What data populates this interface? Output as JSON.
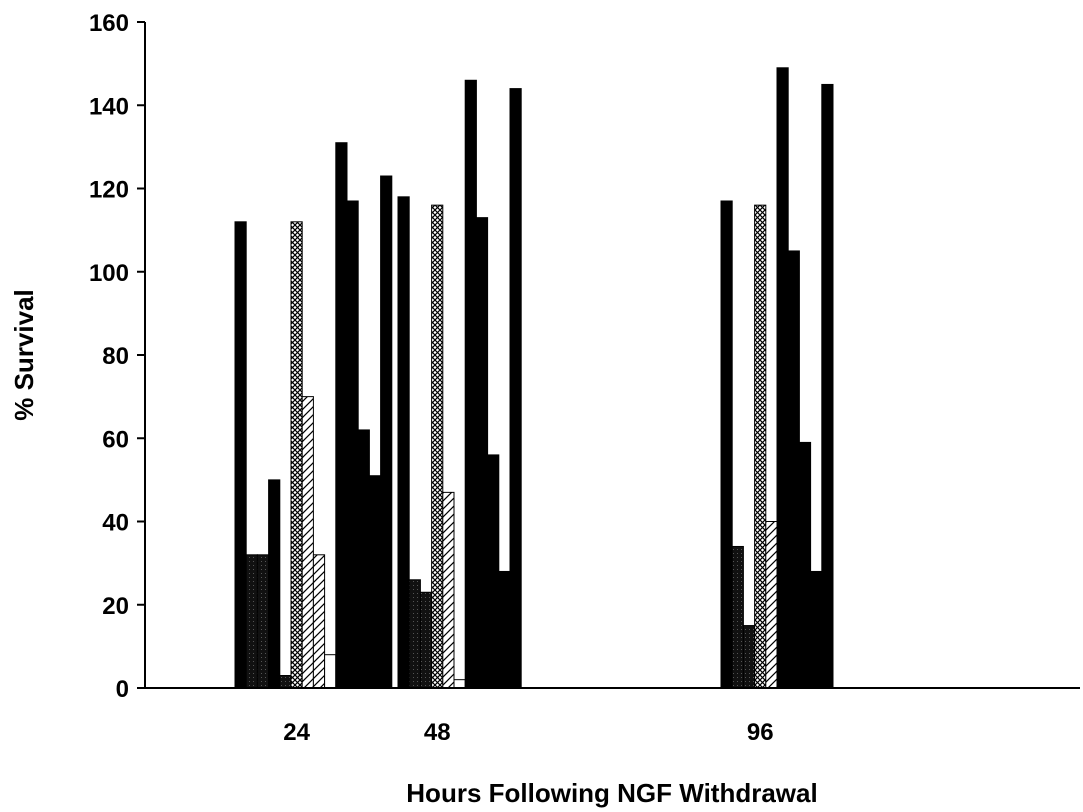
{
  "chart_data": {
    "type": "bar",
    "title": "",
    "xlabel": "Hours Following NGF Withdrawal",
    "ylabel": "% Survival",
    "ylim": [
      0,
      160
    ],
    "yticks": [
      0,
      20,
      40,
      60,
      80,
      100,
      120,
      140,
      160
    ],
    "categories": [
      "24",
      "48",
      "96"
    ],
    "legend": "none",
    "grid": false,
    "colors": {
      "dark": "#111111",
      "black": "#000000",
      "white": "#ffffff"
    },
    "groups": [
      {
        "category": "24",
        "bars": [
          {
            "value": 112,
            "pattern": "black"
          },
          {
            "value": 32,
            "pattern": "dark"
          },
          {
            "value": 32,
            "pattern": "dark"
          },
          {
            "value": 50,
            "pattern": "black"
          },
          {
            "value": 3,
            "pattern": "dark"
          },
          {
            "value": 112,
            "pattern": "crosshatch"
          },
          {
            "value": 70,
            "pattern": "diagonal"
          },
          {
            "value": 32,
            "pattern": "diagonal"
          },
          {
            "value": 8,
            "pattern": "white"
          },
          {
            "value": 131,
            "pattern": "black"
          },
          {
            "value": 117,
            "pattern": "black"
          },
          {
            "value": 62,
            "pattern": "black"
          },
          {
            "value": 51,
            "pattern": "black"
          },
          {
            "value": 123,
            "pattern": "black"
          }
        ]
      },
      {
        "category": "48",
        "bars": [
          {
            "value": 118,
            "pattern": "black"
          },
          {
            "value": 26,
            "pattern": "dark"
          },
          {
            "value": 23,
            "pattern": "dark"
          },
          {
            "value": 116,
            "pattern": "crosshatch"
          },
          {
            "value": 47,
            "pattern": "diagonal"
          },
          {
            "value": 2,
            "pattern": "white"
          },
          {
            "value": 146,
            "pattern": "black"
          },
          {
            "value": 113,
            "pattern": "black"
          },
          {
            "value": 56,
            "pattern": "black"
          },
          {
            "value": 28,
            "pattern": "black"
          },
          {
            "value": 144,
            "pattern": "black"
          }
        ]
      },
      {
        "category": "96",
        "bars": [
          {
            "value": 117,
            "pattern": "black"
          },
          {
            "value": 34,
            "pattern": "dark"
          },
          {
            "value": 15,
            "pattern": "dark"
          },
          {
            "value": 116,
            "pattern": "crosshatch"
          },
          {
            "value": 40,
            "pattern": "diagonal"
          },
          {
            "value": 149,
            "pattern": "black"
          },
          {
            "value": 105,
            "pattern": "black"
          },
          {
            "value": 59,
            "pattern": "black"
          },
          {
            "value": 28,
            "pattern": "black"
          },
          {
            "value": 145,
            "pattern": "black"
          }
        ]
      }
    ]
  }
}
